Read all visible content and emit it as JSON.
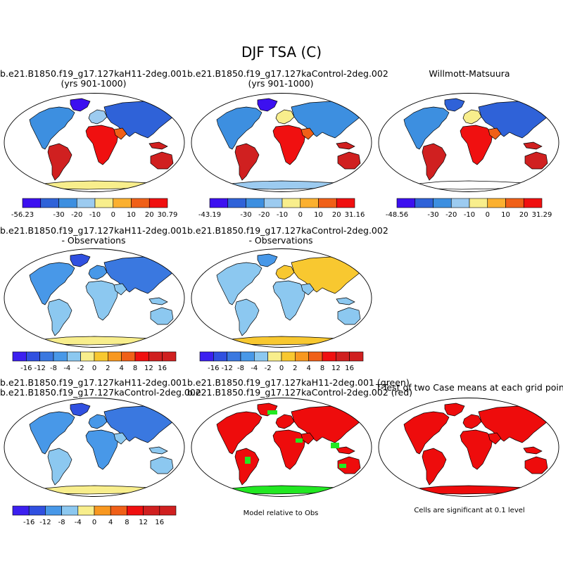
{
  "title": "DJF TSA (C)",
  "colors": {
    "abs": [
      "#3c10f0",
      "#2f62d8",
      "#3d8fe0",
      "#9ccbf0",
      "#f8ee8c",
      "#fbb030",
      "#f06018",
      "#f01010",
      "#d02020"
    ],
    "diff": [
      "#3c20f0",
      "#3050e0",
      "#3a78e0",
      "#4898e8",
      "#8cc8f0",
      "#f8ee8c",
      "#f8c830",
      "#f89820",
      "#f06018",
      "#f01010",
      "#d02020"
    ],
    "green": "#22e822",
    "red": "#ee0c0c",
    "land": "#ffffff",
    "outline": "#000000"
  },
  "panels": [
    {
      "title1": "b.e21.B1850.f19_g17.127kaH11-2deg.001",
      "title2": "(yrs 901-1000)",
      "type": "abs",
      "labels": [
        "-56.23",
        "-30",
        "-20",
        "-10",
        "0",
        "10",
        "20",
        "30.79"
      ]
    },
    {
      "title1": "b.e21.B1850.f19_g17.127kaControl-2deg.002",
      "title2": "(yrs 901-1000)",
      "type": "abs",
      "labels": [
        "-43.19",
        "-30",
        "-20",
        "-10",
        "0",
        "10",
        "20",
        "31.16"
      ]
    },
    {
      "title1": "",
      "title2": "Willmott-Matsuura",
      "type": "abs",
      "labels": [
        "-48.56",
        "-30",
        "-20",
        "-10",
        "0",
        "10",
        "20",
        "31.29"
      ]
    },
    {
      "title1": "b.e21.B1850.f19_g17.127kaH11-2deg.001",
      "title2": "- Observations",
      "type": "diff",
      "labels": [
        "-16",
        "-12",
        "-8",
        "-4",
        "-2",
        "0",
        "2",
        "4",
        "8",
        "12",
        "16"
      ]
    },
    {
      "title1": "b.e21.B1850.f19_g17.127kaControl-2deg.002",
      "title2": "- Observations",
      "type": "diff",
      "labels": [
        "-16",
        "-12",
        "-8",
        "-4",
        "-2",
        "0",
        "2",
        "4",
        "8",
        "12",
        "16"
      ]
    },
    {
      "title1": "b.e21.B1850.f19_g17.127kaH11-2deg.001",
      "title2": "b.e21.B1850.f19_g17.127kaControl-2deg.002",
      "type": "diff2",
      "labels": [
        "-16",
        "-12",
        "-8",
        "-4",
        "0",
        "4",
        "8",
        "12",
        "16"
      ]
    },
    {
      "title1": "b.e21.B1850.f19_g17.127kaH11-2deg.001 (green)",
      "title2": "b.e21.B1850.f19_g17.127kaControl-2deg.002 (red)",
      "type": "greenred",
      "note": "Model relative to Obs"
    },
    {
      "title1": "T-Test of two Case means at each grid point",
      "title2": "",
      "type": "ttest",
      "note": "Cells are significant at 0.1 level"
    }
  ],
  "chart_data": {
    "type": "heatmap",
    "title": "DJF TSA (C)",
    "variable": "TSA",
    "units": "C",
    "season": "DJF",
    "maps": [
      {
        "name": "b.e21.B1850.f19_g17.127kaH11-2deg.001 (yrs 901-1000)",
        "min": -56.23,
        "max": 30.79,
        "levels": [
          -30,
          -20,
          -10,
          0,
          10,
          20
        ]
      },
      {
        "name": "b.e21.B1850.f19_g17.127kaControl-2deg.002 (yrs 901-1000)",
        "min": -43.19,
        "max": 31.16,
        "levels": [
          -30,
          -20,
          -10,
          0,
          10,
          20
        ]
      },
      {
        "name": "Willmott-Matsuura",
        "min": -48.56,
        "max": 31.29,
        "levels": [
          -30,
          -20,
          -10,
          0,
          10,
          20
        ]
      },
      {
        "name": "b.e21.B1850.f19_g17.127kaH11-2deg.001 - Observations",
        "levels": [
          -16,
          -12,
          -8,
          -4,
          -2,
          0,
          2,
          4,
          8,
          12,
          16
        ]
      },
      {
        "name": "b.e21.B1850.f19_g17.127kaControl-2deg.002 - Observations",
        "levels": [
          -16,
          -12,
          -8,
          -4,
          -2,
          0,
          2,
          4,
          8,
          12,
          16
        ]
      },
      {
        "name": "b.e21.B1850.f19_g17.127kaH11-2deg.001 - b.e21.B1850.f19_g17.127kaControl-2deg.002",
        "levels": [
          -16,
          -12,
          -8,
          -4,
          0,
          4,
          8,
          12,
          16
        ]
      },
      {
        "name": "Model relative to Obs",
        "legend": [
          "green: b.e21.B1850.f19_g17.127kaH11-2deg.001",
          "red: b.e21.B1850.f19_g17.127kaControl-2deg.002"
        ]
      },
      {
        "name": "T-Test of two Case means at each grid point",
        "note": "Cells are significant at 0.1 level",
        "significance": 0.1
      }
    ]
  }
}
